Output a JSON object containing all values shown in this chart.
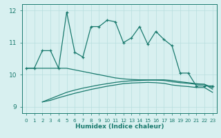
{
  "xlabel": "Humidex (Indice chaleur)",
  "x": [
    0,
    1,
    2,
    3,
    4,
    5,
    6,
    7,
    8,
    9,
    10,
    11,
    12,
    13,
    14,
    15,
    16,
    17,
    18,
    19,
    20,
    21,
    22,
    23
  ],
  "line1": [
    10.2,
    10.2,
    10.75,
    10.75,
    10.2,
    11.95,
    10.7,
    10.55,
    11.5,
    11.5,
    11.7,
    11.65,
    11.0,
    11.15,
    11.5,
    10.95,
    11.35,
    11.1,
    10.9,
    10.05,
    10.05,
    9.65,
    9.65,
    9.65
  ],
  "line_upper": [
    10.2,
    10.2,
    10.2,
    10.2,
    10.2,
    10.2,
    10.15,
    10.1,
    10.05,
    10.0,
    9.95,
    9.9,
    9.87,
    9.85,
    9.84,
    9.84,
    9.84,
    9.84,
    9.82,
    9.78,
    9.75,
    9.72,
    9.7,
    9.6
  ],
  "line_mid": [
    null,
    null,
    9.15,
    9.25,
    9.35,
    9.45,
    9.52,
    9.58,
    9.63,
    9.68,
    9.72,
    9.76,
    9.79,
    9.81,
    9.82,
    9.83,
    9.83,
    9.82,
    9.78,
    9.75,
    9.73,
    9.7,
    9.7,
    9.55
  ],
  "line_lower": [
    null,
    null,
    9.15,
    9.2,
    9.28,
    9.35,
    9.42,
    9.48,
    9.54,
    9.59,
    9.64,
    9.68,
    9.72,
    9.74,
    9.75,
    9.76,
    9.75,
    9.73,
    9.68,
    9.65,
    9.63,
    9.6,
    9.6,
    9.45
  ],
  "ylim": [
    8.8,
    12.2
  ],
  "xlim": [
    -0.5,
    23.5
  ],
  "yticks": [
    9,
    10,
    11,
    12
  ],
  "color": "#1a7a6e",
  "bg_color": "#d8f0f0",
  "grid_color": "#b8dede"
}
